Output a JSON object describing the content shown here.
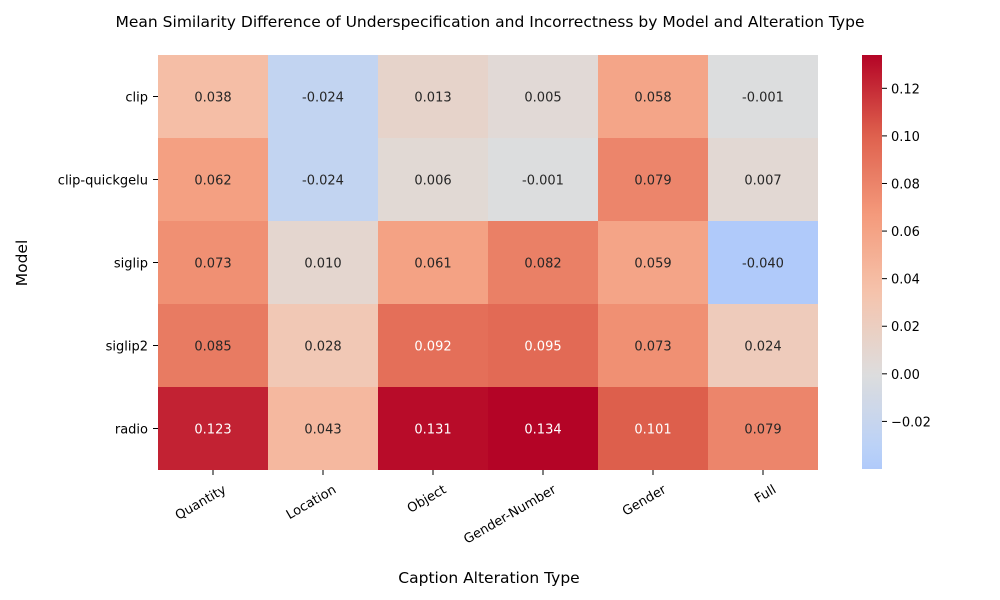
{
  "chart_data": {
    "type": "heatmap",
    "title": "Mean Similarity Difference of Underspecification and Incorrectness by Model and Alteration Type",
    "xlabel": "Caption Alteration Type",
    "ylabel": "Model",
    "x_categories": [
      "Quantity",
      "Location",
      "Object",
      "Gender-Number",
      "Gender",
      "Full"
    ],
    "y_categories": [
      "clip",
      "clip-quickgelu",
      "siglip",
      "siglip2",
      "radio"
    ],
    "values": [
      [
        0.038,
        -0.024,
        0.013,
        0.005,
        0.058,
        -0.001
      ],
      [
        0.062,
        -0.024,
        0.006,
        -0.001,
        0.079,
        0.007
      ],
      [
        0.073,
        0.01,
        0.061,
        0.082,
        0.059,
        -0.04
      ],
      [
        0.085,
        0.028,
        0.092,
        0.095,
        0.073,
        0.024
      ],
      [
        0.123,
        0.043,
        0.131,
        0.134,
        0.101,
        0.079
      ]
    ],
    "value_labels": [
      [
        "0.038",
        "-0.024",
        "0.013",
        "0.005",
        "0.058",
        "-0.001"
      ],
      [
        "0.062",
        "-0.024",
        "0.006",
        "-0.001",
        "0.079",
        "0.007"
      ],
      [
        "0.073",
        "0.010",
        "0.061",
        "0.082",
        "0.059",
        "-0.040"
      ],
      [
        "0.085",
        "0.028",
        "0.092",
        "0.095",
        "0.073",
        "0.024"
      ],
      [
        "0.123",
        "0.043",
        "0.131",
        "0.134",
        "0.101",
        "0.079"
      ]
    ],
    "colormap": "coolwarm",
    "center": 0,
    "vmin": -0.04,
    "vmax": 0.134,
    "colorbar_ticks": [
      0.12,
      0.1,
      0.08,
      0.06,
      0.04,
      0.02,
      0.0,
      -0.02
    ],
    "colorbar_tick_labels": [
      "0.12",
      "0.10",
      "0.08",
      "0.06",
      "0.04",
      "0.02",
      "0.00",
      "−0.02"
    ]
  }
}
